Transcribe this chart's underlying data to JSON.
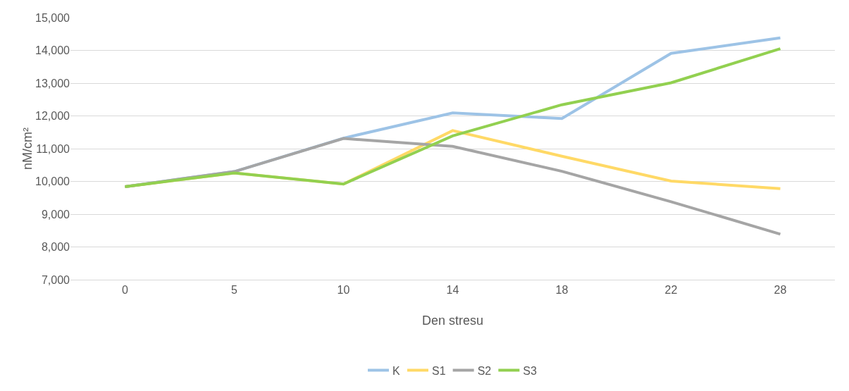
{
  "chart_data": {
    "type": "line",
    "xlabel": "Den stresu",
    "ylabel": "nM/cm²",
    "categories": [
      "0",
      "5",
      "10",
      "14",
      "18",
      "22",
      "28"
    ],
    "series": [
      {
        "name": "K",
        "color": "#9dc3e6",
        "values": [
          9840,
          10300,
          11320,
          12090,
          11920,
          13910,
          14380
        ]
      },
      {
        "name": "S1",
        "color": "#ffd966",
        "values": [
          9840,
          10260,
          9920,
          11550,
          10770,
          10010,
          9780
        ]
      },
      {
        "name": "S2",
        "color": "#a5a5a5",
        "values": [
          9840,
          10300,
          11310,
          11070,
          10310,
          9380,
          8390
        ]
      },
      {
        "name": "S3",
        "color": "#92d050",
        "values": [
          9840,
          10260,
          9920,
          11390,
          12340,
          13010,
          14050
        ]
      }
    ],
    "ylim": [
      7000,
      15000
    ],
    "yticks": [
      {
        "value": 7000,
        "label": "7,000"
      },
      {
        "value": 8000,
        "label": "8,000"
      },
      {
        "value": 9000,
        "label": "9,000"
      },
      {
        "value": 10000,
        "label": "10,000"
      },
      {
        "value": 11000,
        "label": "11,000"
      },
      {
        "value": 12000,
        "label": "12,000"
      },
      {
        "value": 13000,
        "label": "13,000"
      },
      {
        "value": 14000,
        "label": "14,000"
      },
      {
        "value": 15000,
        "label": "15,000"
      }
    ],
    "grid": "y",
    "legend": "bottom",
    "marker": "none",
    "line_style": "solid"
  }
}
